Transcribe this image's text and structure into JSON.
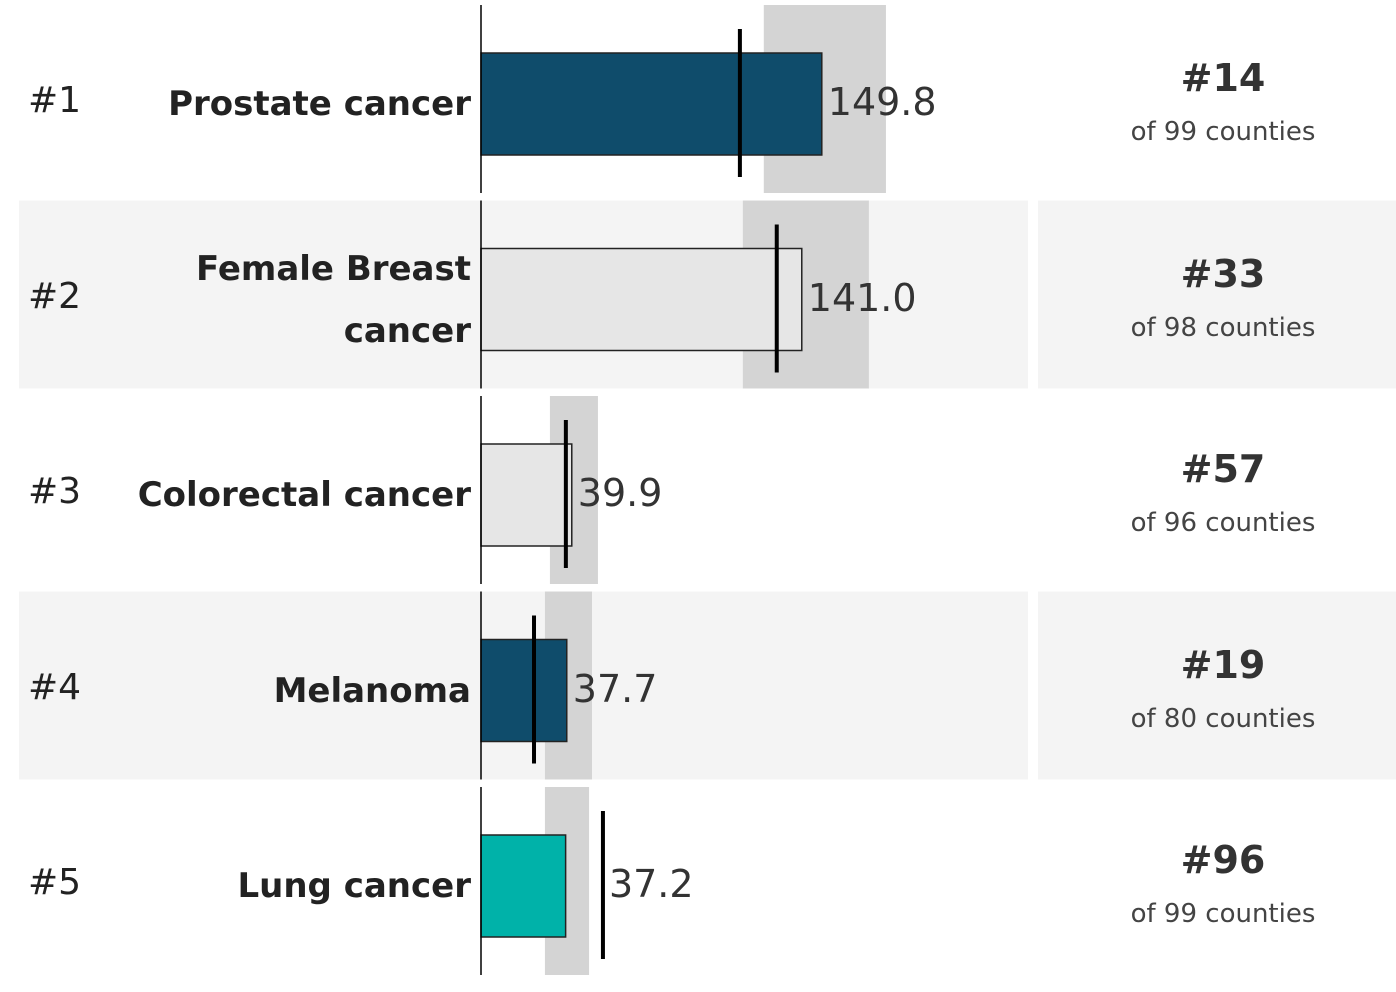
{
  "chart_data": {
    "type": "bullet",
    "xlim": [
      0,
      200
    ],
    "ranks": [
      "#1",
      "#2",
      "#3",
      "#4",
      "#5"
    ],
    "categories": [
      "Prostate cancer",
      "Female Breast cancer",
      "Colorectal cancer",
      "Melanoma",
      "Lung cancer"
    ],
    "values": [
      149.8,
      141.0,
      39.9,
      37.7,
      37.2
    ],
    "value_labels": [
      "149.8",
      "141.0",
      "39.9",
      "37.7",
      "37.2"
    ],
    "colors": [
      "#0f4c6b",
      "#e6e6e6",
      "#e6e6e6",
      "#0f4c6b",
      "#00b2a9"
    ],
    "targets": [
      113.8,
      130.0,
      37.3,
      23.3,
      53.6
    ],
    "ranges": [
      [
        124.3,
        178.0
      ],
      [
        115.1,
        170.5
      ],
      [
        30.3,
        51.4
      ],
      [
        28.1,
        48.8
      ],
      [
        28.1,
        47.5
      ]
    ],
    "county_ranks": [
      "#14",
      "#33",
      "#57",
      "#19",
      "#96"
    ],
    "county_notes": [
      "of 99 counties",
      "of 98 counties",
      "of 96 counties",
      "of 80 counties",
      "of 99 counties"
    ]
  }
}
